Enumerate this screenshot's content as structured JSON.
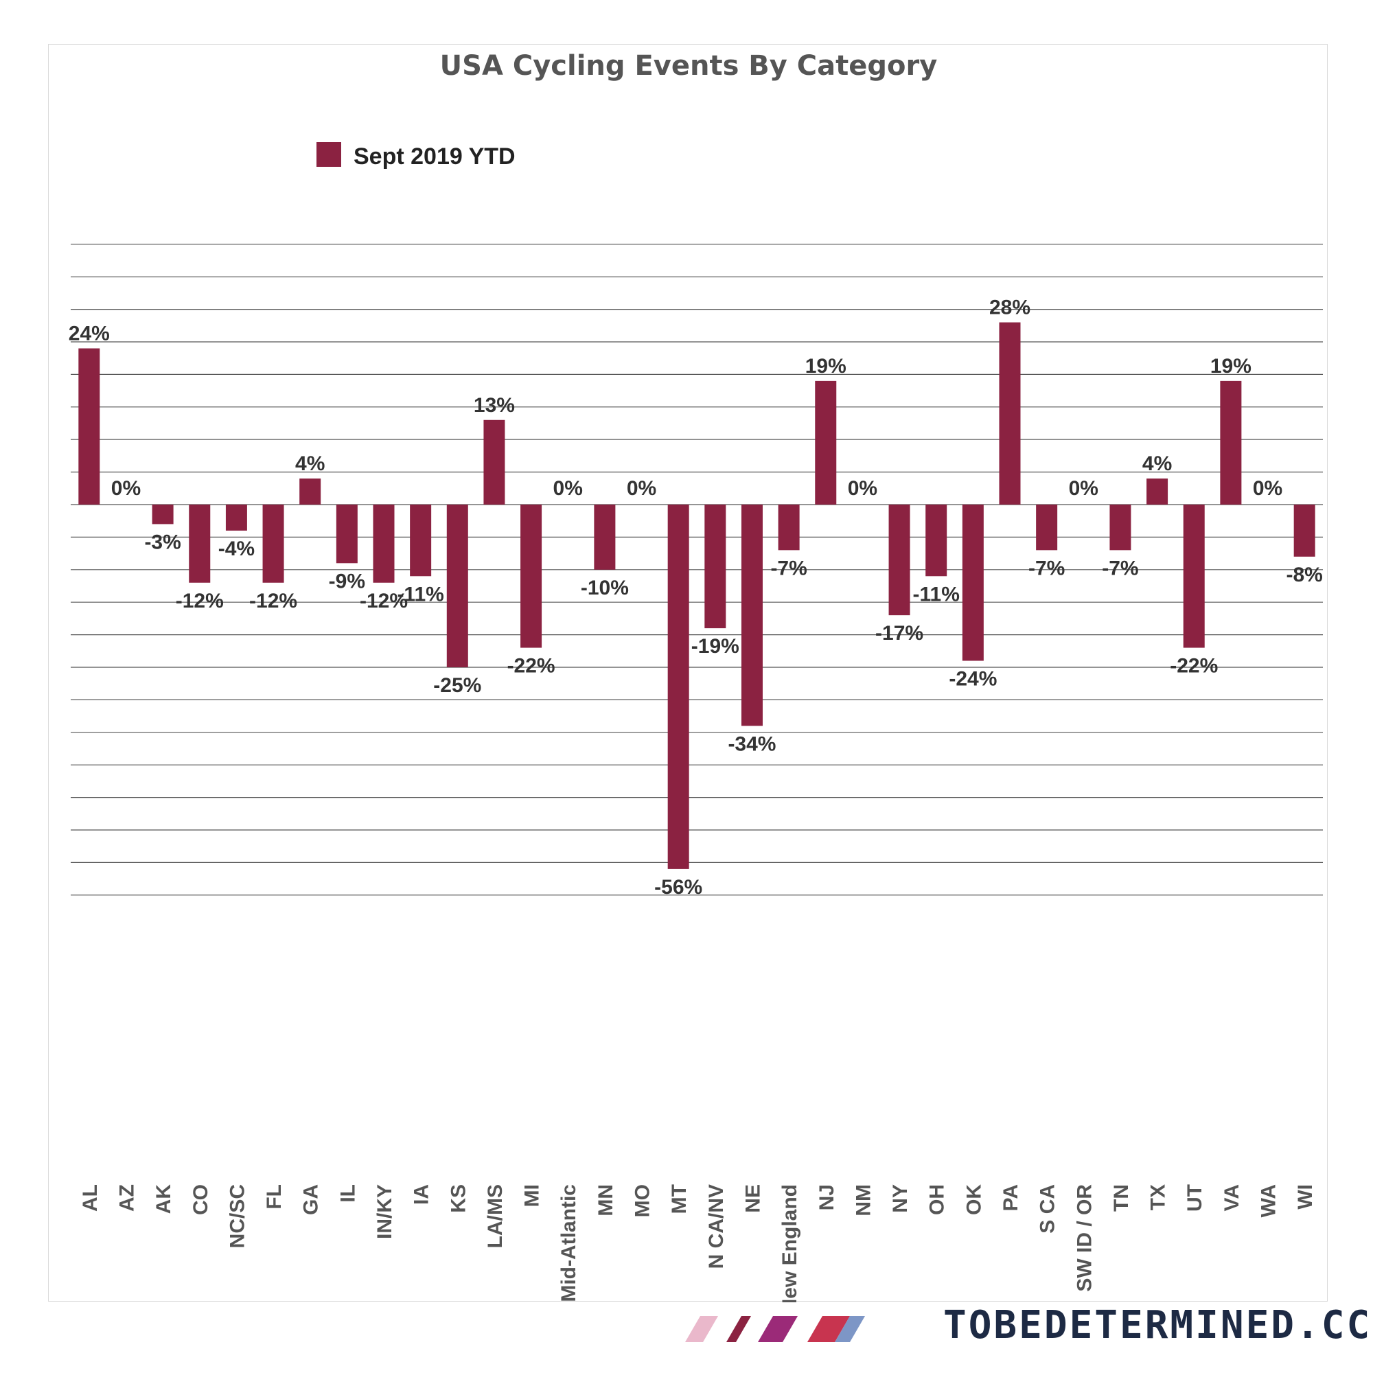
{
  "chart_data": {
    "type": "bar",
    "title": "USA Cycling Events By Category",
    "xlabel": "",
    "ylabel": "",
    "ylim": [
      -60,
      40
    ],
    "grid": true,
    "legend_position": "top-left",
    "categories": [
      "AL",
      "AZ",
      "AK",
      "CO",
      "NC/SC",
      "FL",
      "GA",
      "IL",
      "IN/KY",
      "IA",
      "KS",
      "LA/MS",
      "MI",
      "Mid-Atlantic",
      "MN",
      "MO",
      "MT",
      "N CA/NV",
      "NE",
      "New England",
      "NJ",
      "NM",
      "NY",
      "OH",
      "OK",
      "PA",
      "S CA",
      "SW ID / OR",
      "TN",
      "TX",
      "UT",
      "VA",
      "WA",
      "WI"
    ],
    "series": [
      {
        "name": "Sept 2019 YTD",
        "color": "#8b2241",
        "values": [
          24,
          0,
          -3,
          -12,
          -4,
          -12,
          4,
          -9,
          -12,
          -11,
          -25,
          13,
          -22,
          0,
          -10,
          0,
          -56,
          -19,
          -34,
          -7,
          19,
          0,
          -17,
          -11,
          -24,
          28,
          -7,
          0,
          -7,
          4,
          -22,
          19,
          0,
          -8
        ]
      }
    ],
    "value_labels": [
      "24%",
      "0%",
      "-3%",
      "-12%",
      "-4%",
      "-12%",
      "4%",
      "-9%",
      "-12%",
      "-11%",
      "-25%",
      "13%",
      "-22%",
      "0%",
      "-10%",
      "0%",
      "-56%",
      "-19%",
      "-34%",
      "-7%",
      "19%",
      "0%",
      "-17%",
      "-11%",
      "-24%",
      "28%",
      "-7%",
      "0%",
      "-7%",
      "4%",
      "-22%",
      "19%",
      "0%",
      "-8%"
    ]
  },
  "brand": {
    "text": "TOBEDETERMINED.CC",
    "stripe_colors": [
      "#eab8cb",
      "#8b2241",
      "#9b2a78",
      "#c8344f",
      "#7d96c6"
    ]
  }
}
